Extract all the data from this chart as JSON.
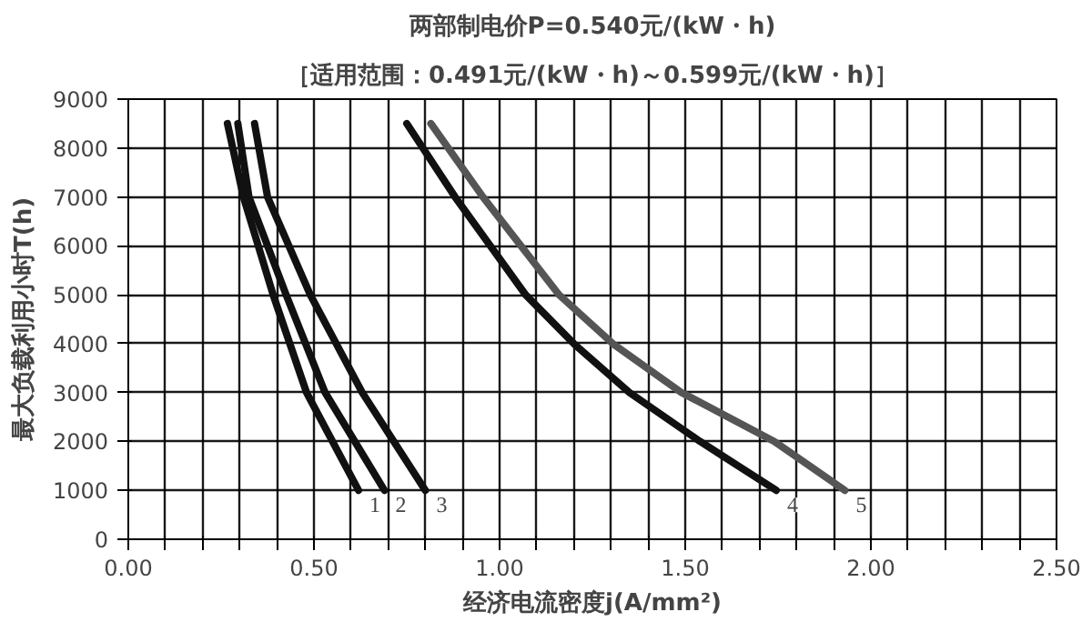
{
  "chart_data": {
    "type": "line",
    "title": "两部制电价P=0.540元/(kW・h)",
    "subtitle": "［适用范围：0.491元/(kW・h)～0.599元/(kW・h)］",
    "xlabel": "经济电流密度j(A/mm²)",
    "ylabel": "最大负载利用小时T(h)",
    "xlim": [
      0,
      2.5
    ],
    "ylim": [
      0,
      9000
    ],
    "xticks": [
      {
        "value": 0,
        "label": "0.00"
      },
      {
        "value": 0.1,
        "label": null
      },
      {
        "value": 0.2,
        "label": null
      },
      {
        "value": 0.3,
        "label": null
      },
      {
        "value": 0.4,
        "label": null
      },
      {
        "value": 0.5,
        "label": "0.50"
      },
      {
        "value": 0.6,
        "label": null
      },
      {
        "value": 0.7,
        "label": null
      },
      {
        "value": 0.8,
        "label": null
      },
      {
        "value": 0.9,
        "label": null
      },
      {
        "value": 1.0,
        "label": "1.00"
      },
      {
        "value": 1.1,
        "label": null
      },
      {
        "value": 1.2,
        "label": null
      },
      {
        "value": 1.3,
        "label": null
      },
      {
        "value": 1.4,
        "label": null
      },
      {
        "value": 1.5,
        "label": "1.50"
      },
      {
        "value": 1.6,
        "label": null
      },
      {
        "value": 1.7,
        "label": null
      },
      {
        "value": 1.8,
        "label": null
      },
      {
        "value": 1.9,
        "label": null
      },
      {
        "value": 2.0,
        "label": "2.00"
      },
      {
        "value": 2.1,
        "label": null
      },
      {
        "value": 2.2,
        "label": null
      },
      {
        "value": 2.3,
        "label": null
      },
      {
        "value": 2.4,
        "label": null
      },
      {
        "value": 2.5,
        "label": "2.50"
      }
    ],
    "yticks": [
      0,
      1000,
      2000,
      3000,
      4000,
      5000,
      6000,
      7000,
      8000,
      9000
    ],
    "grid": true,
    "marker": "none",
    "line_style": "solid",
    "series": [
      {
        "name": "1",
        "color": "#111111",
        "x": [
          0.267,
          0.31,
          0.39,
          0.48,
          0.62
        ],
        "values": [
          8500,
          7000,
          5000,
          3000,
          1000
        ]
      },
      {
        "name": "2",
        "color": "#111111",
        "x": [
          0.295,
          0.325,
          0.425,
          0.53,
          0.69
        ],
        "values": [
          8500,
          7000,
          5000,
          3000,
          1000
        ]
      },
      {
        "name": "3",
        "color": "#111111",
        "x": [
          0.34,
          0.375,
          0.49,
          0.63,
          0.8
        ],
        "values": [
          8500,
          7000,
          5000,
          3000,
          1000
        ]
      },
      {
        "name": "4",
        "color": "#111111",
        "x": [
          0.75,
          0.88,
          1.07,
          1.2,
          1.35,
          1.54,
          1.745
        ],
        "values": [
          8500,
          7000,
          5000,
          4000,
          3000,
          2000,
          1000
        ]
      },
      {
        "name": "5",
        "color": "#555555",
        "x": [
          0.815,
          0.955,
          1.16,
          1.305,
          1.49,
          1.74,
          1.93
        ],
        "values": [
          8500,
          7000,
          5000,
          4000,
          3000,
          2000,
          1000
        ]
      }
    ]
  }
}
